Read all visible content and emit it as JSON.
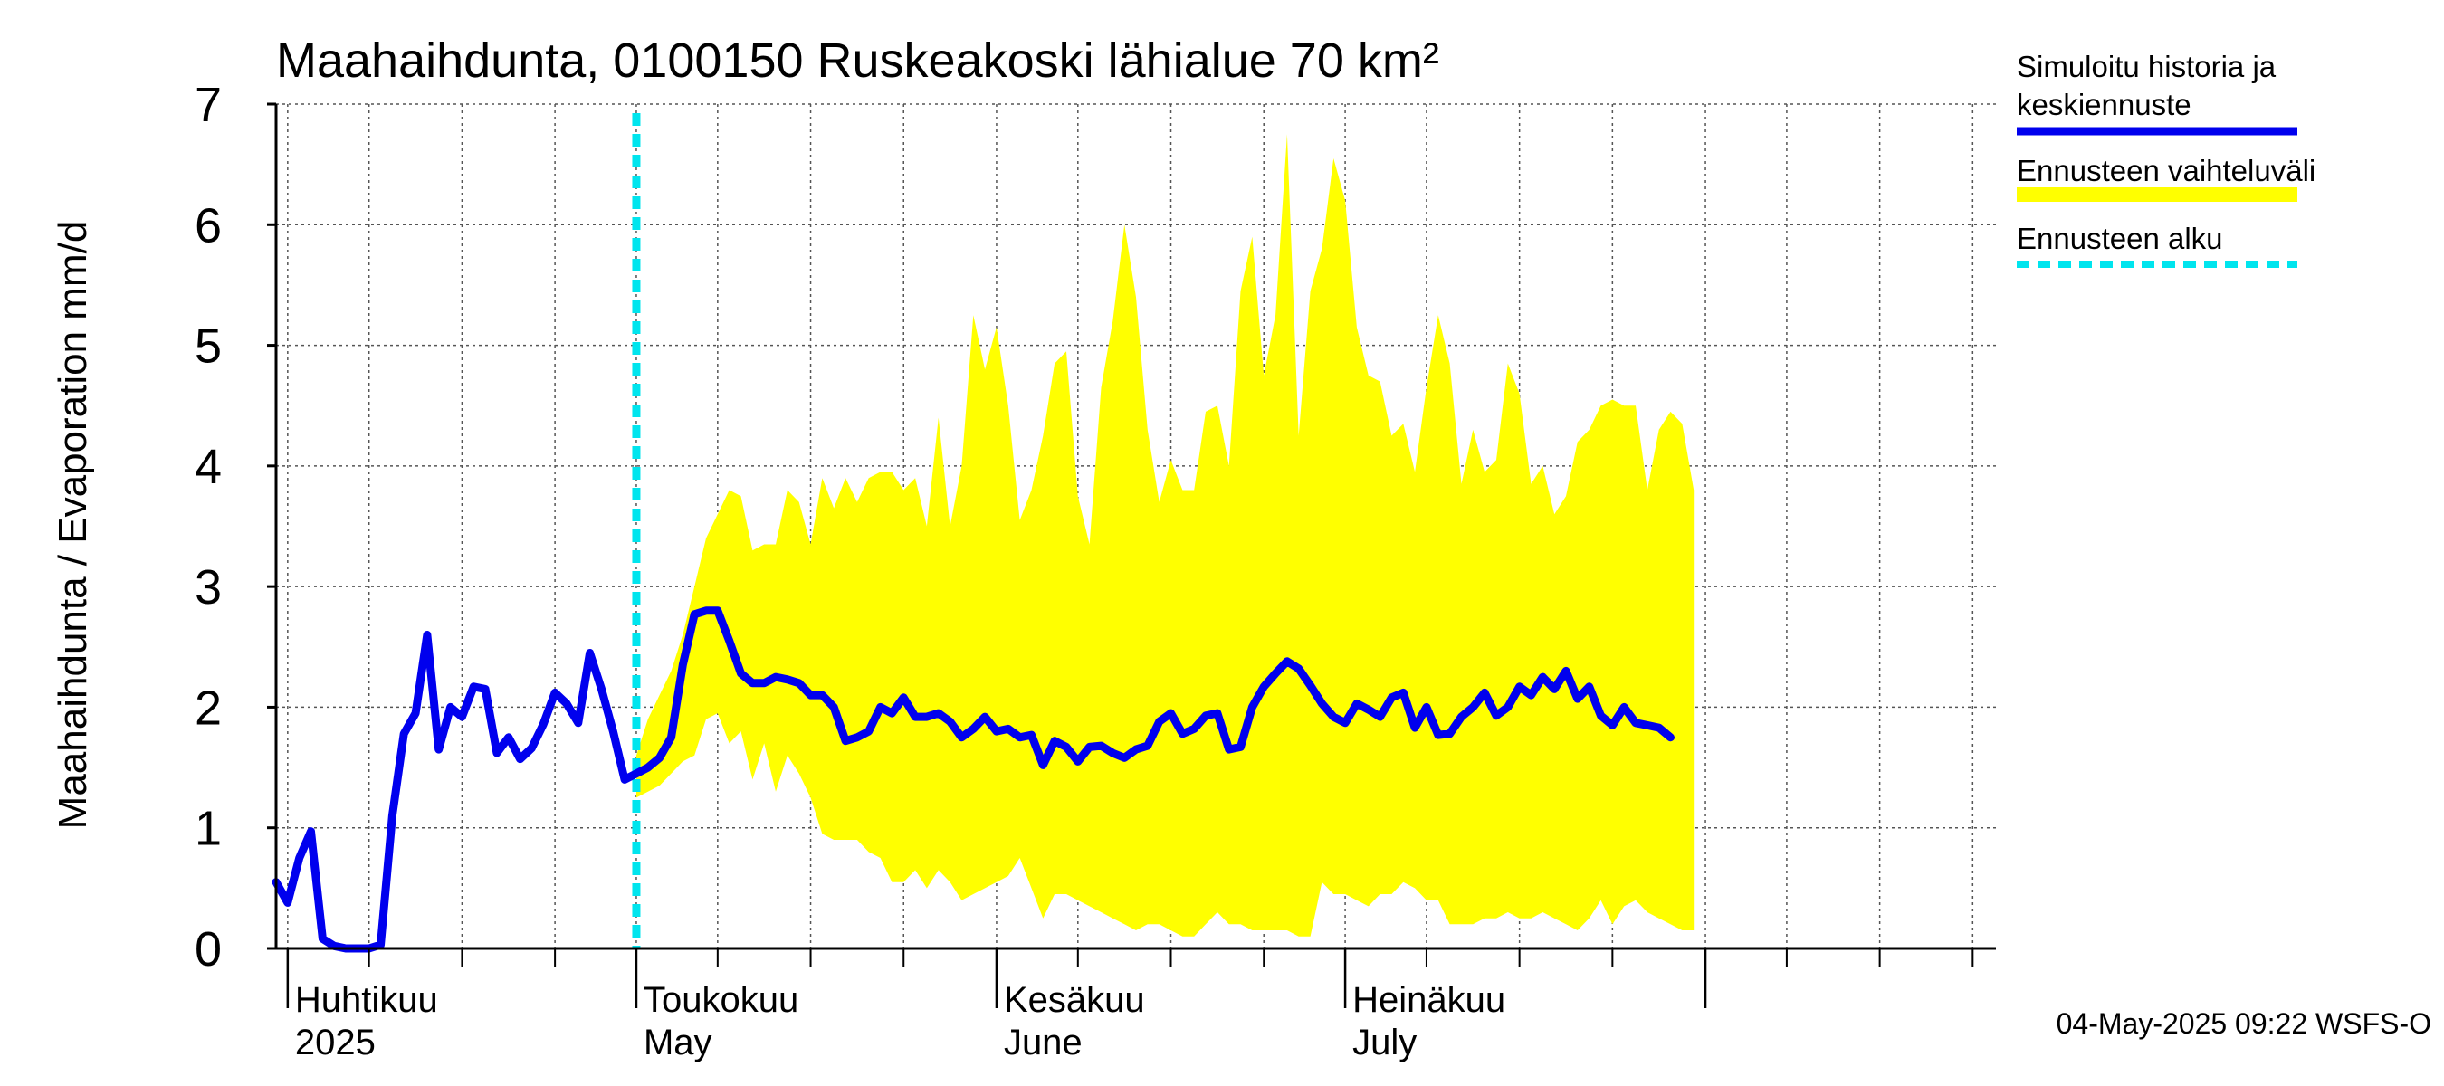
{
  "chart_data": {
    "type": "line",
    "title": "Maahaihdunta, 0100150 Ruskeakoski lähialue 70 km²",
    "ylabel": "Maahaihdunta / Evaporation   mm/d",
    "ylim": [
      0,
      7
    ],
    "yticks": [
      "0",
      "1",
      "2",
      "3",
      "4",
      "5",
      "6",
      "7"
    ],
    "x_start": "2025-03-31",
    "x_end": "2025-08-26",
    "grid": true,
    "forecast_start": "2025-05-01",
    "month_labels": [
      {
        "date": "2025-04-01",
        "line1": "Huhtikuu",
        "line2": "2025"
      },
      {
        "date": "2025-05-01",
        "line1": "Toukokuu",
        "line2": "May"
      },
      {
        "date": "2025-06-01",
        "line1": "Kesäkuu",
        "line2": "June"
      },
      {
        "date": "2025-07-01",
        "line1": "Heinäkuu",
        "line2": "July"
      }
    ],
    "series": [
      {
        "name": "Simuloitu historia ja keskiennuste",
        "color": "#0000ee",
        "x_start": "2025-03-31",
        "step_days": 1,
        "values": [
          0.55,
          0.38,
          0.75,
          0.97,
          0.08,
          0.02,
          0.0,
          0.0,
          0.0,
          0.03,
          1.1,
          1.78,
          1.95,
          2.6,
          1.65,
          2.0,
          1.92,
          2.17,
          2.15,
          1.62,
          1.75,
          1.57,
          1.66,
          1.86,
          2.12,
          2.03,
          1.87,
          2.45,
          2.15,
          1.8,
          1.4,
          1.45,
          1.5,
          1.58,
          1.75,
          2.35,
          2.77,
          2.8,
          2.8,
          2.55,
          2.28,
          2.2,
          2.2,
          2.25,
          2.23,
          2.2,
          2.1,
          2.1,
          2.0,
          1.72,
          1.75,
          1.8,
          2.0,
          1.95,
          2.08,
          1.92,
          1.92,
          1.95,
          1.88,
          1.75,
          1.82,
          1.92,
          1.8,
          1.82,
          1.75,
          1.77,
          1.52,
          1.72,
          1.67,
          1.55,
          1.67,
          1.68,
          1.62,
          1.58,
          1.65,
          1.68,
          1.88,
          1.95,
          1.78,
          1.82,
          1.93,
          1.95,
          1.65,
          1.67,
          2.0,
          2.17,
          2.28,
          2.38,
          2.32,
          2.18,
          2.03,
          1.92,
          1.87,
          2.03,
          1.98,
          1.92,
          2.08,
          2.12,
          1.83,
          2.0,
          1.77,
          1.78,
          1.92,
          2.0,
          2.12,
          1.93,
          2.0,
          2.17,
          2.1,
          2.25,
          2.15,
          2.3,
          2.07,
          2.17,
          1.93,
          1.85,
          2.0,
          1.87,
          1.85,
          1.83,
          1.75
        ]
      },
      {
        "name": "Ennusteen vaihteluväli",
        "color": "#ffff00",
        "type": "band",
        "x_start": "2025-05-01",
        "step_days": 1,
        "upper": [
          1.6,
          1.9,
          2.1,
          2.3,
          2.6,
          3.0,
          3.4,
          3.6,
          3.8,
          3.75,
          3.3,
          3.35,
          3.35,
          3.8,
          3.7,
          3.35,
          3.9,
          3.65,
          3.9,
          3.7,
          3.9,
          3.95,
          3.95,
          3.8,
          3.9,
          3.5,
          4.4,
          3.5,
          4.0,
          5.25,
          4.8,
          5.15,
          4.5,
          3.55,
          3.8,
          4.25,
          4.85,
          4.95,
          3.75,
          3.35,
          4.65,
          5.2,
          6.0,
          5.4,
          4.3,
          3.7,
          4.05,
          3.8,
          3.8,
          4.45,
          4.5,
          4.0,
          5.45,
          5.9,
          4.75,
          5.25,
          6.75,
          4.25,
          5.45,
          5.8,
          6.55,
          6.2,
          5.15,
          4.75,
          4.7,
          4.25,
          4.35,
          3.95,
          4.65,
          5.25,
          4.85,
          3.85,
          4.3,
          3.95,
          4.05,
          4.85,
          4.6,
          3.85,
          4.0,
          3.6,
          3.75,
          4.2,
          4.3,
          4.5,
          4.55,
          4.5,
          4.5,
          3.8,
          4.3,
          4.45,
          4.35,
          3.8
        ],
        "lower": [
          1.25,
          1.3,
          1.35,
          1.45,
          1.55,
          1.6,
          1.9,
          1.95,
          1.7,
          1.8,
          1.4,
          1.7,
          1.3,
          1.6,
          1.45,
          1.25,
          0.95,
          0.9,
          0.9,
          0.9,
          0.8,
          0.75,
          0.55,
          0.55,
          0.65,
          0.5,
          0.65,
          0.55,
          0.4,
          0.45,
          0.5,
          0.55,
          0.6,
          0.75,
          0.5,
          0.25,
          0.45,
          0.45,
          0.4,
          0.35,
          0.3,
          0.25,
          0.2,
          0.15,
          0.2,
          0.2,
          0.15,
          0.1,
          0.1,
          0.2,
          0.3,
          0.2,
          0.2,
          0.15,
          0.15,
          0.15,
          0.15,
          0.1,
          0.1,
          0.55,
          0.45,
          0.45,
          0.4,
          0.35,
          0.45,
          0.45,
          0.55,
          0.5,
          0.4,
          0.4,
          0.2,
          0.2,
          0.2,
          0.25,
          0.25,
          0.3,
          0.25,
          0.25,
          0.3,
          0.25,
          0.2,
          0.15,
          0.25,
          0.4,
          0.2,
          0.35,
          0.4,
          0.3,
          0.25,
          0.2,
          0.15,
          0.15
        ]
      },
      {
        "name": "Ennusteen alku",
        "color": "#00e5ee",
        "type": "vline"
      }
    ],
    "legend": {
      "placement": "top-right",
      "entries": [
        {
          "lines": [
            "Simuloitu historia ja",
            "keskiennuste"
          ],
          "color": "#0000ee",
          "style": "solid"
        },
        {
          "lines": [
            "Ennusteen vaihteluväli"
          ],
          "color": "#ffff00",
          "style": "solid"
        },
        {
          "lines": [
            "Ennusteen alku"
          ],
          "color": "#00e5ee",
          "style": "dashed"
        }
      ]
    },
    "footer": "04-May-2025 09:22 WSFS-O"
  }
}
